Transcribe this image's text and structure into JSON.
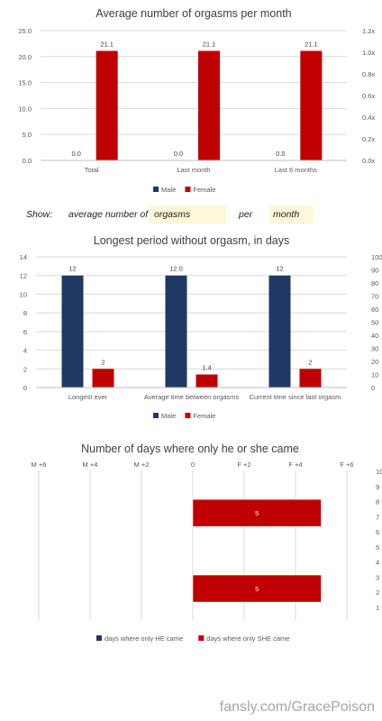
{
  "chart_data": [
    {
      "type": "bar",
      "title": "Average number of orgasms per month",
      "categories": [
        "Total",
        "Last month",
        "Last 6 months"
      ],
      "series": [
        {
          "name": "Male",
          "color": "#1f3864",
          "values": [
            0.0,
            0.0,
            0.0
          ],
          "labels": [
            "0.0",
            "0.0",
            "0.0"
          ]
        },
        {
          "name": "Female",
          "color": "#c00000",
          "values": [
            21.1,
            21.1,
            21.1
          ],
          "labels": [
            "21.1",
            "21.1",
            "21.1"
          ]
        }
      ],
      "ylim": [
        0,
        25
      ],
      "yticks": [
        "0.0",
        "5.0",
        "10.0",
        "15.0",
        "20.0",
        "25.0"
      ],
      "secondary_yticks": [
        "0.0x",
        "0.2x",
        "0.4x",
        "0.6x",
        "0.8x",
        "1.0x",
        "1.2x"
      ],
      "legend": "bottom",
      "grid": true
    },
    {
      "type": "bar",
      "title": "Longest period without orgasm, in days",
      "categories": [
        "Longest ever",
        "Average time between orgasms",
        "Current time since last orgasm"
      ],
      "series": [
        {
          "name": "Male",
          "color": "#1f3864",
          "values": [
            12,
            12,
            12
          ],
          "labels": [
            "12",
            "12.0",
            "12"
          ]
        },
        {
          "name": "Female",
          "color": "#c00000",
          "values": [
            2,
            1.4,
            2
          ],
          "labels": [
            "2",
            "1.4",
            "2"
          ]
        }
      ],
      "ylim": [
        0,
        14
      ],
      "yticks": [
        "0",
        "2",
        "4",
        "6",
        "8",
        "10",
        "12",
        "14"
      ],
      "secondary_yticks": [
        "0",
        "10",
        "20",
        "30",
        "40",
        "50",
        "60",
        "70",
        "80",
        "90",
        "100"
      ],
      "legend": "bottom",
      "grid": true
    },
    {
      "type": "bar",
      "orientation": "horizontal",
      "title": "Number of days where only he or she came",
      "xticks": [
        "M +6",
        "M +4",
        "M +2",
        "0",
        "F +2",
        "F +4",
        "F +6"
      ],
      "xlim": [
        -6,
        6
      ],
      "secondary_yticks": [
        "1",
        "2",
        "3",
        "4",
        "5",
        "6",
        "7",
        "8",
        "9",
        "10"
      ],
      "bars": [
        {
          "position": 7.25,
          "value": 5,
          "label": "5"
        },
        {
          "position": 2.25,
          "value": 5,
          "label": "5"
        }
      ],
      "series": [
        {
          "name": "days where only HE came",
          "color": "#1f3864"
        },
        {
          "name": "days where only SHE came",
          "color": "#c00000"
        }
      ],
      "legend": "bottom",
      "grid": true
    }
  ],
  "controls": {
    "show_label": "Show:",
    "text1": "average number of",
    "field1": "orgasms",
    "text2": "per",
    "field2": "month"
  },
  "watermark": "fansly.com/GracePoison"
}
